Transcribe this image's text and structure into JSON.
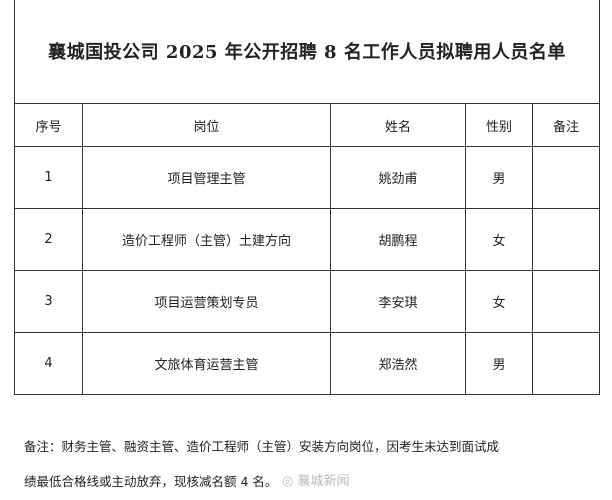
{
  "title": "襄城国投公司 2025 年公开招聘 8 名工作人员拟聘用人员名单",
  "headers": [
    "序号",
    "岗位",
    "姓名",
    "性别",
    "备注"
  ],
  "rows": [
    [
      "1",
      "项目管理主管",
      "姚劲甫",
      "男",
      ""
    ],
    [
      "2",
      "造价工程师（主管）土建方向",
      "胡鹏程",
      "女",
      ""
    ],
    [
      "3",
      "项目运营策划专员",
      "李安琪",
      "女",
      ""
    ],
    [
      "4",
      "文旅体育运营主管",
      "郑浩然",
      "男",
      ""
    ]
  ],
  "note": {
    "line1": "备注：财务主管、融资主管、造价工程师（主管）安装方向岗位，因考生未达到面试成",
    "line2": "绩最低合格线或主动放弃，现核减名额 4 名。"
  },
  "watermark": "襄城新闻"
}
